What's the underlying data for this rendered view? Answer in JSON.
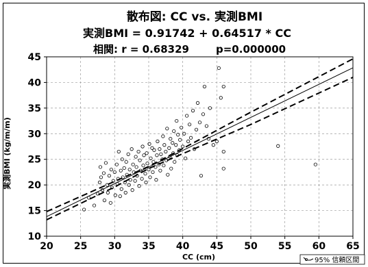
{
  "chart_data": {
    "type": "scatter",
    "title": "散布図: CC vs. 実測BMI",
    "equation": "実測BMI = 0.91742 + 0.64517 * CC",
    "correlation_label": "相関: r = 0.68329",
    "p_label": "p=0.000000",
    "xlabel": "CC (cm)",
    "ylabel": "実測BMI (kg/m/m)",
    "xlim": [
      20,
      65
    ],
    "ylim": [
      10,
      45
    ],
    "x_ticks": [
      20,
      25,
      30,
      35,
      40,
      45,
      50,
      55,
      60,
      65
    ],
    "y_ticks": [
      10,
      15,
      20,
      25,
      30,
      35,
      40,
      45
    ],
    "grid": true,
    "regression": {
      "intercept": 0.91742,
      "slope": 0.64517
    },
    "confidence_band": [
      {
        "x": 20,
        "lower": 13.2,
        "upper": 14.8
      },
      {
        "x": 30,
        "lower": 19.6,
        "upper": 20.7
      },
      {
        "x": 35,
        "lower": 23.2,
        "upper": 23.6
      },
      {
        "x": 40,
        "lower": 26.1,
        "upper": 27.1
      },
      {
        "x": 50,
        "lower": 31.8,
        "upper": 34.2
      },
      {
        "x": 65,
        "lower": 41.0,
        "upper": 44.6
      }
    ],
    "legend": "95% 信頼区間",
    "points": [
      [
        25.5,
        15.2
      ],
      [
        26.2,
        17.5
      ],
      [
        27.0,
        16.0
      ],
      [
        27.5,
        18.3
      ],
      [
        27.8,
        20.5
      ],
      [
        27.9,
        23.5
      ],
      [
        28.0,
        21.5
      ],
      [
        28.2,
        19.0
      ],
      [
        28.4,
        22.3
      ],
      [
        28.5,
        17.0
      ],
      [
        28.7,
        24.3
      ],
      [
        28.9,
        20.0
      ],
      [
        29.0,
        18.5
      ],
      [
        29.2,
        21.8
      ],
      [
        29.4,
        16.5
      ],
      [
        29.5,
        23.0
      ],
      [
        29.6,
        19.5
      ],
      [
        29.8,
        20.8
      ],
      [
        30.0,
        22.5
      ],
      [
        30.1,
        18.0
      ],
      [
        30.3,
        24.0
      ],
      [
        30.4,
        20.2
      ],
      [
        30.5,
        21.2
      ],
      [
        30.6,
        26.5
      ],
      [
        30.8,
        17.8
      ],
      [
        30.9,
        22.8
      ],
      [
        31.0,
        19.2
      ],
      [
        31.1,
        25.0
      ],
      [
        31.2,
        21.5
      ],
      [
        31.4,
        23.3
      ],
      [
        31.5,
        20.5
      ],
      [
        31.6,
        18.5
      ],
      [
        31.7,
        24.5
      ],
      [
        31.8,
        22.0
      ],
      [
        32.0,
        26.0
      ],
      [
        32.1,
        20.0
      ],
      [
        32.2,
        23.0
      ],
      [
        32.3,
        21.0
      ],
      [
        32.5,
        27.0
      ],
      [
        32.6,
        19.0
      ],
      [
        32.7,
        24.0
      ],
      [
        32.8,
        22.5
      ],
      [
        33.0,
        20.8
      ],
      [
        33.1,
        25.5
      ],
      [
        33.2,
        23.5
      ],
      [
        33.3,
        21.8
      ],
      [
        33.5,
        26.5
      ],
      [
        33.6,
        19.8
      ],
      [
        33.7,
        24.8
      ],
      [
        33.8,
        22.8
      ],
      [
        34.0,
        21.2
      ],
      [
        34.1,
        27.5
      ],
      [
        34.2,
        23.8
      ],
      [
        34.3,
        25.8
      ],
      [
        34.5,
        22.2
      ],
      [
        34.6,
        20.5
      ],
      [
        34.7,
        26.2
      ],
      [
        34.8,
        24.2
      ],
      [
        35.0,
        23.0
      ],
      [
        35.1,
        28.0
      ],
      [
        35.2,
        21.5
      ],
      [
        35.3,
        25.2
      ],
      [
        35.5,
        27.2
      ],
      [
        35.6,
        22.5
      ],
      [
        35.7,
        24.5
      ],
      [
        35.8,
        26.8
      ],
      [
        36.0,
        23.5
      ],
      [
        36.1,
        21.0
      ],
      [
        36.2,
        25.8
      ],
      [
        36.3,
        28.5
      ],
      [
        36.5,
        24.0
      ],
      [
        36.6,
        27.0
      ],
      [
        36.7,
        22.8
      ],
      [
        36.8,
        26.0
      ],
      [
        37.0,
        25.0
      ],
      [
        37.1,
        29.5
      ],
      [
        37.2,
        23.8
      ],
      [
        37.3,
        27.8
      ],
      [
        37.5,
        26.5
      ],
      [
        37.6,
        24.8
      ],
      [
        37.7,
        31.0
      ],
      [
        37.8,
        22.0
      ],
      [
        38.0,
        27.2
      ],
      [
        38.1,
        25.5
      ],
      [
        38.2,
        29.0
      ],
      [
        38.3,
        23.2
      ],
      [
        38.5,
        28.2
      ],
      [
        38.6,
        26.2
      ],
      [
        38.7,
        30.5
      ],
      [
        38.8,
        24.5
      ],
      [
        39.0,
        27.8
      ],
      [
        39.1,
        32.5
      ],
      [
        39.2,
        25.8
      ],
      [
        39.3,
        29.8
      ],
      [
        39.5,
        26.8
      ],
      [
        39.6,
        28.8
      ],
      [
        39.8,
        31.2
      ],
      [
        40.0,
        27.5
      ],
      [
        40.2,
        30.0
      ],
      [
        40.4,
        25.2
      ],
      [
        40.6,
        33.5
      ],
      [
        40.8,
        28.5
      ],
      [
        41.0,
        31.8
      ],
      [
        41.2,
        29.2
      ],
      [
        41.5,
        34.5
      ],
      [
        41.7,
        27.0
      ],
      [
        42.0,
        30.8
      ],
      [
        42.2,
        36.0
      ],
      [
        42.5,
        32.2
      ],
      [
        42.7,
        21.8
      ],
      [
        43.0,
        33.8
      ],
      [
        43.2,
        39.2
      ],
      [
        43.5,
        31.5
      ],
      [
        43.8,
        29.0
      ],
      [
        44.0,
        35.0
      ],
      [
        44.5,
        27.8
      ],
      [
        45.0,
        28.5
      ],
      [
        45.3,
        42.8
      ],
      [
        45.6,
        37.0
      ],
      [
        46.0,
        39.2
      ],
      [
        46.0,
        26.5
      ],
      [
        46.0,
        23.2
      ],
      [
        54.0,
        27.6
      ],
      [
        59.5,
        24.0
      ]
    ]
  }
}
